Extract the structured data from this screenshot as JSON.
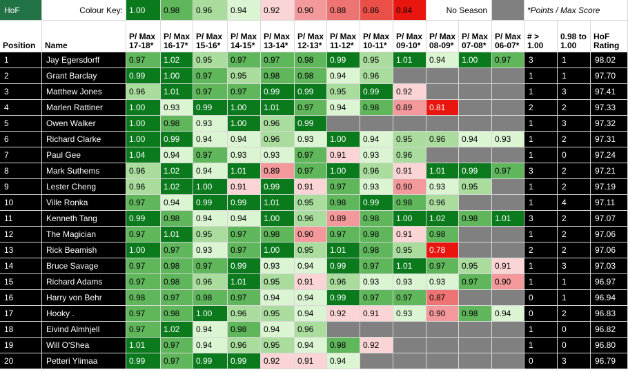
{
  "corner_label": "HoF",
  "key_label": "Colour Key:",
  "key_values": [
    "1.00",
    "0.98",
    "0.96",
    "0.94",
    "0.92",
    "0.90",
    "0.88",
    "0.86",
    "0.84"
  ],
  "no_season_label": "No Season",
  "note": "*Points / Max Score",
  "headers": [
    "Position",
    "Name",
    "P/ Max 17-18*",
    "P/ Max 16-17*",
    "P/ Max 15-16*",
    "P/ Max 14-15*",
    "P/ Max 13-14*",
    "P/ Max 12-13*",
    "P/ Max 11-12*",
    "P/ Max 10-11*",
    "P/ Max 09-10*",
    "P/ Max 08-09*",
    "P/ Max 07-08*",
    "P/ Max 06-07*",
    "# > 1.00",
    "0.98 to 1.00",
    "HoF Rating"
  ],
  "colors": {
    "c100": "#0a7a1c",
    "c098": "#5fb65b",
    "c096": "#a9dc9d",
    "c094": "#dbf4d2",
    "c092": "#fbd5d5",
    "c090": "#f3999b",
    "c088": "#ee7473",
    "c086": "#ea4f48",
    "c084": "#e8160e",
    "no_season": "#808080",
    "key_dark": "#217346",
    "dark_col": "#000000"
  },
  "rows": [
    {
      "pos": "1",
      "name": "Jay Egersdorff",
      "vals": [
        "0.97",
        "1.02",
        "0.95",
        "0.97",
        "0.97",
        "0.98",
        "0.99",
        "0.95",
        "1.01",
        "0.94",
        "1.00",
        "0.97"
      ],
      "gt": "3",
      "mid": "1",
      "rating": "98.02"
    },
    {
      "pos": "2",
      "name": "Grant Barclay",
      "vals": [
        "0.99",
        "1.00",
        "0.97",
        "0.95",
        "0.98",
        "0.98",
        "0.94",
        "0.96",
        "",
        "",
        "",
        ""
      ],
      "gt": "1",
      "mid": "1",
      "rating": "97.70"
    },
    {
      "pos": "3",
      "name": "Matthew Jones",
      "vals": [
        "0.96",
        "1.01",
        "0.97",
        "0.97",
        "0.99",
        "0.99",
        "0.95",
        "0.99",
        "0.92",
        "",
        "",
        ""
      ],
      "gt": "1",
      "mid": "3",
      "rating": "97.41"
    },
    {
      "pos": "4",
      "name": "Marlen Rattiner",
      "vals": [
        "1.00",
        "0.93",
        "0.99",
        "1.00",
        "1.01",
        "0.97",
        "0.94",
        "0.98",
        "0.89",
        "0.81",
        "",
        ""
      ],
      "gt": "2",
      "mid": "2",
      "rating": "97.33"
    },
    {
      "pos": "5",
      "name": "Owen Walker",
      "vals": [
        "1.00",
        "0.98",
        "0.93",
        "1.00",
        "0.96",
        "0.99",
        "",
        "",
        "",
        "",
        "",
        ""
      ],
      "gt": "1",
      "mid": "3",
      "rating": "97.32"
    },
    {
      "pos": "6",
      "name": "Richard Clarke",
      "vals": [
        "1.00",
        "0.99",
        "0.94",
        "0.94",
        "0.96",
        "0.93",
        "1.00",
        "0.94",
        "0.95",
        "0.96",
        "0.94",
        "0.93"
      ],
      "gt": "1",
      "mid": "2",
      "rating": "97.31"
    },
    {
      "pos": "7",
      "name": "Paul Gee",
      "vals": [
        "1.04",
        "0.94",
        "0.97",
        "0.93",
        "0.93",
        "0.97",
        "0.91",
        "0.93",
        "0.96",
        "",
        "",
        ""
      ],
      "gt": "1",
      "mid": "0",
      "rating": "97.24"
    },
    {
      "pos": "8",
      "name": "Mark Suthems",
      "vals": [
        "0.96",
        "1.02",
        "0.94",
        "1.01",
        "0.89",
        "0.97",
        "1.00",
        "0.96",
        "0.91",
        "1.01",
        "0.99",
        "0.97"
      ],
      "gt": "3",
      "mid": "2",
      "rating": "97.21"
    },
    {
      "pos": "9",
      "name": "Lester Cheng",
      "vals": [
        "0.96",
        "1.02",
        "1.00",
        "0.91",
        "0.99",
        "0.91",
        "0.97",
        "0.93",
        "0.90",
        "0.93",
        "0.95",
        ""
      ],
      "gt": "1",
      "mid": "2",
      "rating": "97.19"
    },
    {
      "pos": "10",
      "name": "Ville Ronka",
      "vals": [
        "0.97",
        "0.94",
        "0.99",
        "0.99",
        "1.01",
        "0.95",
        "0.98",
        "0.99",
        "0.98",
        "0.96",
        "",
        ""
      ],
      "gt": "1",
      "mid": "4",
      "rating": "97.11"
    },
    {
      "pos": "11",
      "name": "Kenneth Tang",
      "vals": [
        "0.99",
        "0.98",
        "0.94",
        "0.94",
        "1.00",
        "0.96",
        "0.89",
        "0.98",
        "1.00",
        "1.02",
        "0.98",
        "1.01"
      ],
      "gt": "3",
      "mid": "2",
      "rating": "97.07"
    },
    {
      "pos": "12",
      "name": "The Magician",
      "vals": [
        "0.97",
        "1.01",
        "0.95",
        "0.97",
        "0.98",
        "0.90",
        "0.97",
        "0.98",
        "0.91",
        "0.98",
        "",
        ""
      ],
      "gt": "1",
      "mid": "2",
      "rating": "97.06"
    },
    {
      "pos": "13",
      "name": "Rick Beamish",
      "vals": [
        "1.00",
        "0.97",
        "0.93",
        "0.97",
        "1.00",
        "0.95",
        "1.01",
        "0.98",
        "0.95",
        "0.78",
        "",
        ""
      ],
      "gt": "2",
      "mid": "2",
      "rating": "97.06"
    },
    {
      "pos": "14",
      "name": "Bruce Savage",
      "vals": [
        "0.97",
        "0.98",
        "0.97",
        "0.99",
        "0.93",
        "0.94",
        "0.99",
        "0.97",
        "1.01",
        "0.97",
        "0.95",
        "0.91"
      ],
      "gt": "1",
      "mid": "3",
      "rating": "97.03"
    },
    {
      "pos": "15",
      "name": "Richard Adams",
      "vals": [
        "0.97",
        "0.98",
        "0.96",
        "1.01",
        "0.95",
        "0.91",
        "0.96",
        "0.93",
        "0.93",
        "0.93",
        "0.97",
        "0.90"
      ],
      "gt": "1",
      "mid": "1",
      "rating": "96.97"
    },
    {
      "pos": "16",
      "name": "Harry von Behr",
      "vals": [
        "0.98",
        "0.97",
        "0.98",
        "0.97",
        "0.94",
        "0.94",
        "0.99",
        "0.97",
        "0.97",
        "0.87",
        "",
        ""
      ],
      "gt": "0",
      "mid": "1",
      "rating": "96.94"
    },
    {
      "pos": "17",
      "name": "Hooky .",
      "vals": [
        "0.97",
        "0.98",
        "1.00",
        "0.96",
        "0.95",
        "0.94",
        "0.92",
        "0.91",
        "0.93",
        "0.90",
        "0.98",
        "0.94"
      ],
      "gt": "0",
      "mid": "2",
      "rating": "96.83"
    },
    {
      "pos": "18",
      "name": "Eivind Almhjell",
      "vals": [
        "0.97",
        "1.02",
        "0.94",
        "0.98",
        "0.94",
        "0.96",
        "",
        "",
        "",
        "",
        "",
        ""
      ],
      "gt": "1",
      "mid": "0",
      "rating": "96.82"
    },
    {
      "pos": "19",
      "name": "Will O'Shea",
      "vals": [
        "1.01",
        "0.97",
        "0.94",
        "0.96",
        "0.95",
        "0.94",
        "0.98",
        "0.92",
        "",
        "",
        "",
        ""
      ],
      "gt": "1",
      "mid": "0",
      "rating": "96.80"
    },
    {
      "pos": "20",
      "name": "Petteri Ylimaa",
      "vals": [
        "0.99",
        "0.97",
        "0.99",
        "0.99",
        "0.92",
        "0.91",
        "0.94",
        "",
        "",
        "",
        "",
        ""
      ],
      "gt": "0",
      "mid": "3",
      "rating": "96.79"
    }
  ]
}
